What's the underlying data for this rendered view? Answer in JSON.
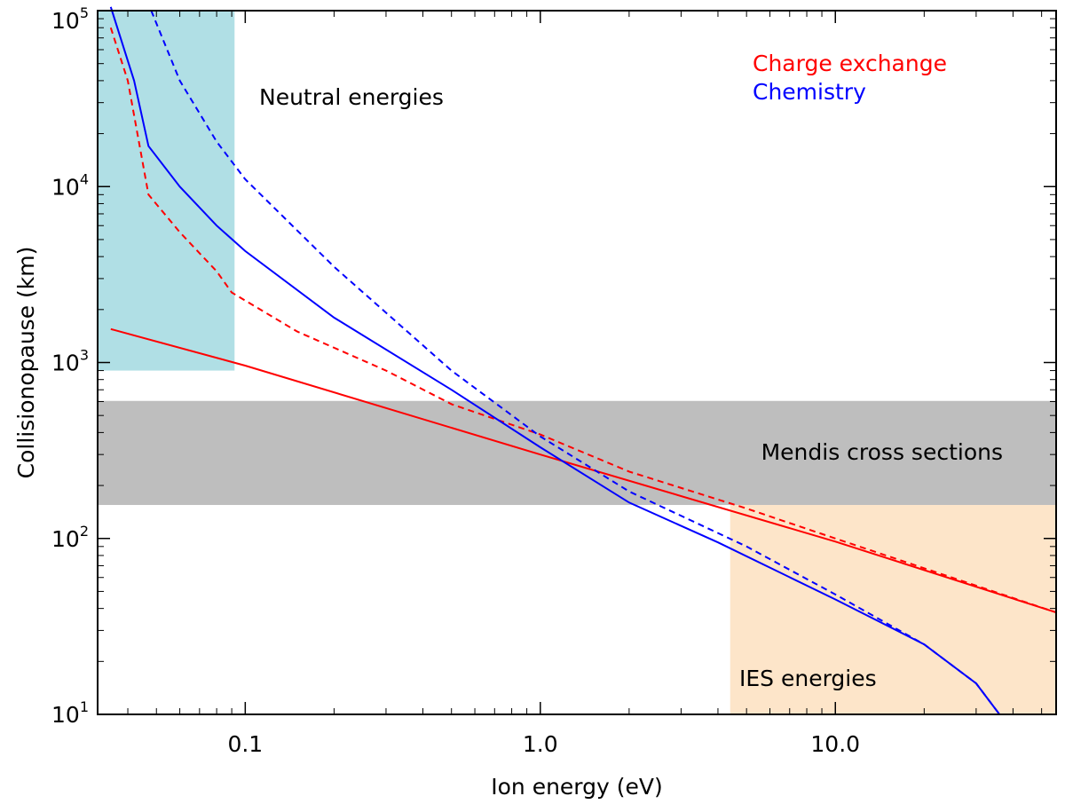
{
  "chart_data": {
    "type": "line",
    "xlabel": "Ion energy (eV)",
    "ylabel": "Collisionopause (km)",
    "x_scale": "log",
    "y_scale": "log",
    "xlim": [
      0.0316,
      56
    ],
    "ylim": [
      10,
      100000
    ],
    "grid": false,
    "legend_position": "top-right",
    "x_ticks": [
      {
        "value": 0.1,
        "label": "0.1"
      },
      {
        "value": 1.0,
        "label": "1.0"
      },
      {
        "value": 10.0,
        "label": "10.0"
      }
    ],
    "y_ticks": [
      {
        "value": 10,
        "base": "10",
        "exp": "1"
      },
      {
        "value": 100,
        "base": "10",
        "exp": "2"
      },
      {
        "value": 1000,
        "base": "10",
        "exp": "3"
      },
      {
        "value": 10000,
        "base": "10",
        "exp": "4"
      },
      {
        "value": 100000,
        "base": "10",
        "exp": "5"
      }
    ],
    "regions": [
      {
        "label": "Neutral energies",
        "color": "#b0dfe5",
        "x": [
          0.0316,
          0.092
        ],
        "y": [
          900,
          100000
        ]
      },
      {
        "label": "Mendis cross sections",
        "color": "#bebebe",
        "x": [
          0.0316,
          56
        ],
        "y": [
          155,
          605
        ]
      },
      {
        "label": "IES energies",
        "color": "#fde5c9",
        "x": [
          4.4,
          56
        ],
        "y": [
          10,
          155
        ]
      }
    ],
    "legend": [
      {
        "label": "Charge exchange",
        "color": "#ff0000"
      },
      {
        "label": "Chemistry",
        "color": "#0000ff"
      }
    ],
    "series": [
      {
        "color": "#ff0000",
        "dash": false,
        "points": [
          [
            0.035,
            1550
          ],
          [
            0.1,
            960
          ],
          [
            1.0,
            300
          ],
          [
            10.0,
            96
          ],
          [
            56,
            38
          ]
        ]
      },
      {
        "color": "#ff0000",
        "dash": true,
        "points": [
          [
            0.035,
            80000
          ],
          [
            0.04,
            40000
          ],
          [
            0.047,
            9000
          ],
          [
            0.06,
            5500
          ],
          [
            0.08,
            3300
          ],
          [
            0.09,
            2500
          ],
          [
            0.15,
            1500
          ],
          [
            0.3,
            900
          ],
          [
            0.5,
            580
          ],
          [
            1.0,
            390
          ],
          [
            2.0,
            240
          ],
          [
            5.0,
            148
          ],
          [
            10.0,
            100
          ],
          [
            56,
            38
          ]
        ]
      },
      {
        "color": "#0000ff",
        "dash": false,
        "points": [
          [
            0.035,
            105000
          ],
          [
            0.042,
            40000
          ],
          [
            0.047,
            17000
          ],
          [
            0.06,
            10000
          ],
          [
            0.08,
            6000
          ],
          [
            0.1,
            4300
          ],
          [
            0.2,
            1800
          ],
          [
            0.5,
            700
          ],
          [
            1.0,
            330
          ],
          [
            2.0,
            160
          ],
          [
            4.0,
            95
          ],
          [
            10.0,
            45
          ],
          [
            20.0,
            25
          ],
          [
            30.0,
            15
          ],
          [
            36,
            10
          ]
        ]
      },
      {
        "color": "#0000ff",
        "dash": true,
        "points": [
          [
            0.048,
            100000
          ],
          [
            0.06,
            40000
          ],
          [
            0.08,
            18000
          ],
          [
            0.1,
            11000
          ],
          [
            0.2,
            3500
          ],
          [
            0.5,
            900
          ],
          [
            1.0,
            380
          ],
          [
            2.0,
            185
          ],
          [
            5.0,
            90
          ],
          [
            10.0,
            48
          ],
          [
            20.0,
            25
          ],
          [
            30.0,
            15
          ],
          [
            36,
            10
          ]
        ]
      }
    ]
  }
}
